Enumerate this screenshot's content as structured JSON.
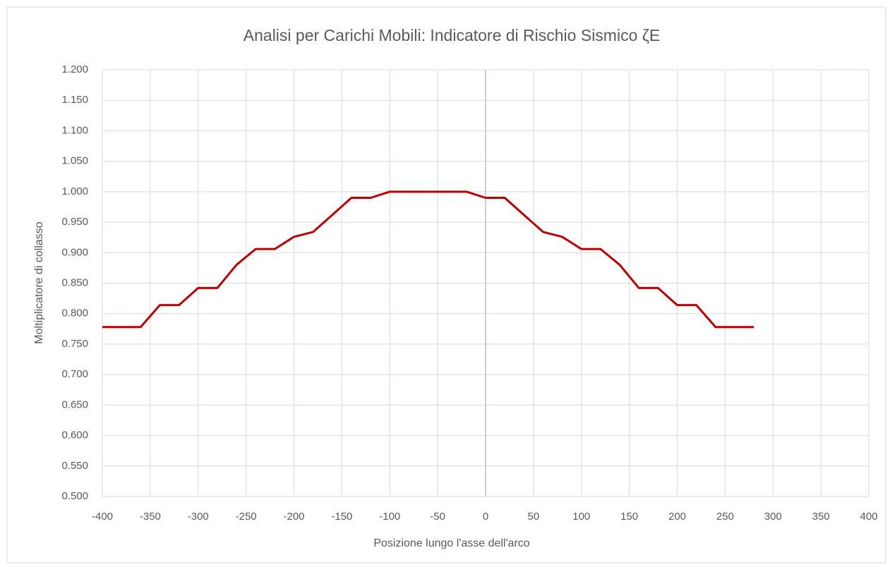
{
  "chart_data": {
    "type": "line",
    "title": "Analisi per Carichi Mobili: Indicatore di Rischio Sismico ζE",
    "x_label": "Posizione lungo l'asse dell'arco",
    "y_label": "Moltiplicatore di collasso",
    "x": [
      -400,
      -380,
      -360,
      -340,
      -320,
      -300,
      -280,
      -260,
      -240,
      -220,
      -200,
      -180,
      -160,
      -140,
      -120,
      -100,
      -80,
      -60,
      -40,
      -20,
      0,
      20,
      40,
      60,
      80,
      100,
      120,
      140,
      160,
      180,
      200,
      220,
      240,
      260,
      280
    ],
    "series": [
      {
        "name": "ζE",
        "color": "#c00000",
        "values": [
          0.778,
          0.778,
          0.778,
          0.814,
          0.814,
          0.842,
          0.842,
          0.88,
          0.906,
          0.906,
          0.926,
          0.934,
          0.962,
          0.99,
          0.99,
          1.0,
          1.0,
          1.0,
          1.0,
          1.0,
          0.99,
          0.99,
          0.962,
          0.934,
          0.926,
          0.906,
          0.906,
          0.88,
          0.842,
          0.842,
          0.814,
          0.814,
          0.778,
          0.778,
          0.778
        ]
      }
    ],
    "xlim": [
      -400,
      400
    ],
    "xticks": [
      -400,
      -350,
      -300,
      -250,
      -200,
      -150,
      -100,
      -50,
      0,
      50,
      100,
      150,
      200,
      250,
      300,
      350,
      400
    ],
    "ylim": [
      0.5,
      1.2
    ],
    "yticks": [
      {
        "value": 0.5,
        "label": "0.500"
      },
      {
        "value": 0.55,
        "label": "0.550"
      },
      {
        "value": 0.6,
        "label": "0.600"
      },
      {
        "value": 0.65,
        "label": "0.650"
      },
      {
        "value": 0.7,
        "label": "0.700"
      },
      {
        "value": 0.75,
        "label": "0.750"
      },
      {
        "value": 0.8,
        "label": "0.800"
      },
      {
        "value": 0.85,
        "label": "0.850"
      },
      {
        "value": 0.9,
        "label": "0.900"
      },
      {
        "value": 0.95,
        "label": "0.950"
      },
      {
        "value": 1.0,
        "label": "1.000"
      },
      {
        "value": 1.05,
        "label": "1.050"
      },
      {
        "value": 1.1,
        "label": "1.100"
      },
      {
        "value": 1.15,
        "label": "1.150"
      },
      {
        "value": 1.2,
        "label": "1.200"
      }
    ],
    "grid": true
  }
}
